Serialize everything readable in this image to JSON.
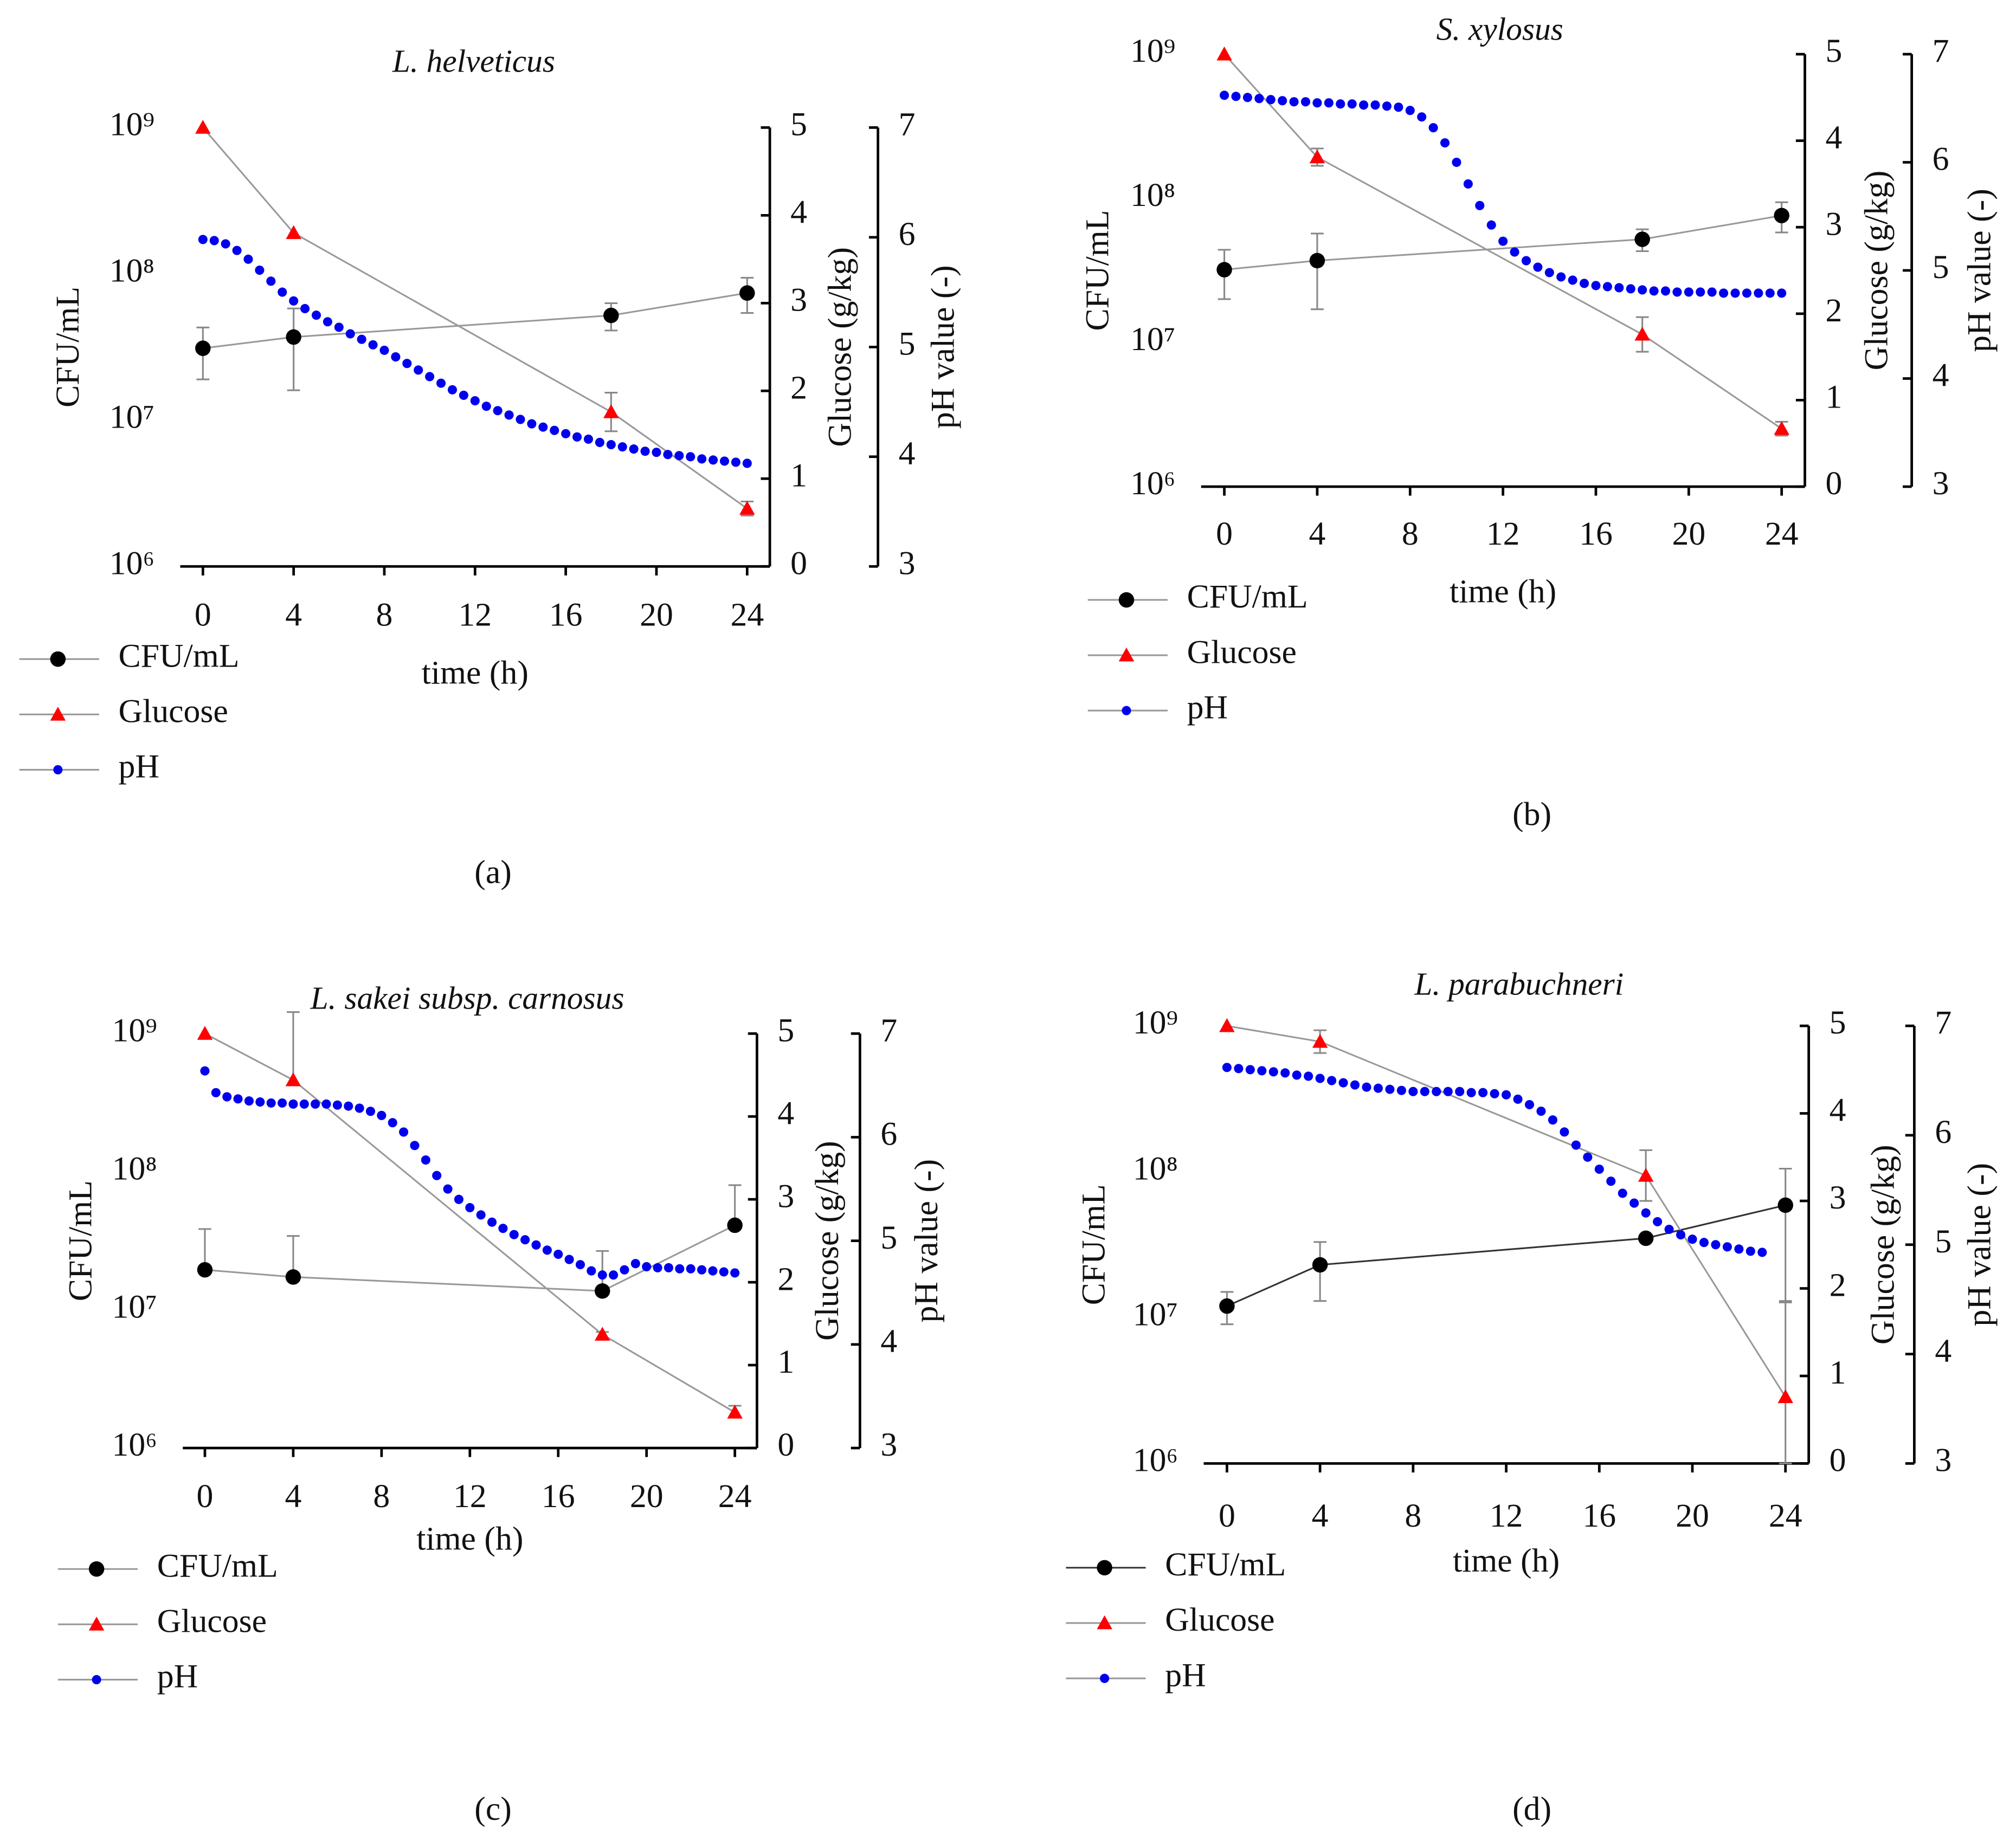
{
  "chart_data": [
    {
      "type": "line",
      "title": "L. helveticus",
      "panel_label": "(a)",
      "xlabel": "time (h)",
      "ylabel": "CFU/mL",
      "y2label": "Glucose (g/kg)",
      "y3label": "pH value (-)",
      "xlim": [
        -1,
        25
      ],
      "xticks": [
        0,
        4,
        8,
        12,
        16,
        20,
        24
      ],
      "ylim": [
        1000000,
        1000000000
      ],
      "ylog": true,
      "yticks": [
        {
          "value": 1000000,
          "label": "10⁶"
        },
        {
          "value": 10000000,
          "label": "10⁷"
        },
        {
          "value": 100000000,
          "label": "10⁸"
        },
        {
          "value": 1000000000,
          "label": "10⁹"
        }
      ],
      "y2lim": [
        0,
        5
      ],
      "y2ticks": [
        0,
        1,
        2,
        3,
        4,
        5
      ],
      "y3lim": [
        3,
        7
      ],
      "y3ticks": [
        3,
        4,
        5,
        6,
        7
      ],
      "error_bars": "both",
      "series": [
        {
          "name": "CFU/mL",
          "color": "#000000",
          "line_color": "#999999",
          "marker": "circle",
          "axis": "y",
          "line": true,
          "x": [
            0,
            4,
            18,
            24
          ],
          "values": [
            31000000,
            37000000,
            52000000,
            74000000
          ],
          "errors": [
            12000000,
            21000000,
            11000000,
            20000000
          ]
        },
        {
          "name": "Glucose",
          "color": "#ff0000",
          "line_color": "#999999",
          "marker": "triangle",
          "axis": "y2",
          "line": true,
          "x": [
            0,
            4,
            18,
            24
          ],
          "values": [
            5.0,
            3.8,
            1.76,
            0.66
          ],
          "errors": [
            0,
            0,
            0.22,
            0.08
          ]
        },
        {
          "name": "pH",
          "color": "#0000ee",
          "line_color": "#999999",
          "marker": "dot",
          "axis": "y3",
          "line": false,
          "x": [
            0,
            0.5,
            1,
            1.5,
            2,
            2.5,
            3,
            3.5,
            4,
            4.5,
            5,
            5.5,
            6,
            6.5,
            7,
            7.5,
            8,
            8.5,
            9,
            9.5,
            10,
            10.5,
            11,
            11.5,
            12,
            12.5,
            13,
            13.5,
            14,
            14.5,
            15,
            15.5,
            16,
            16.5,
            17,
            17.5,
            18,
            18.5,
            19,
            19.5,
            20,
            20.5,
            21,
            21.5,
            22,
            22.5,
            23,
            23.5,
            24
          ],
          "values": [
            5.98,
            5.97,
            5.94,
            5.88,
            5.8,
            5.7,
            5.6,
            5.5,
            5.42,
            5.35,
            5.29,
            5.23,
            5.18,
            5.12,
            5.07,
            5.02,
            4.97,
            4.91,
            4.85,
            4.79,
            4.73,
            4.67,
            4.61,
            4.56,
            4.51,
            4.46,
            4.42,
            4.38,
            4.34,
            4.3,
            4.27,
            4.24,
            4.21,
            4.18,
            4.16,
            4.13,
            4.11,
            4.09,
            4.07,
            4.05,
            4.04,
            4.02,
            4.01,
            4.0,
            3.98,
            3.97,
            3.96,
            3.95,
            3.94
          ]
        }
      ]
    },
    {
      "type": "line",
      "title": "S. xylosus",
      "panel_label": "(b)",
      "xlabel": "time (h)",
      "ylabel": "CFU/mL",
      "y2label": "Glucose (g/kg)",
      "y3label": "pH value (-)",
      "xlim": [
        -1,
        25
      ],
      "xticks": [
        0,
        4,
        8,
        12,
        16,
        20,
        24
      ],
      "ylim": [
        1000000,
        1000000000
      ],
      "ylog": true,
      "yticks": [
        {
          "value": 1000000,
          "label": "10⁶"
        },
        {
          "value": 10000000,
          "label": "10⁷"
        },
        {
          "value": 100000000,
          "label": "10⁸"
        },
        {
          "value": 1000000000,
          "label": "10⁹"
        }
      ],
      "y2lim": [
        0,
        5
      ],
      "y2ticks": [
        0,
        1,
        2,
        3,
        4,
        5
      ],
      "y3lim": [
        3,
        7
      ],
      "y3ticks": [
        3,
        4,
        5,
        6,
        7
      ],
      "error_bars": "both",
      "series": [
        {
          "name": "CFU/mL",
          "color": "#000000",
          "line_color": "#999999",
          "marker": "circle",
          "axis": "y",
          "line": true,
          "x": [
            0,
            4,
            18,
            24
          ],
          "values": [
            32000000,
            37000000,
            52000000,
            76000000
          ],
          "errors": [
            12000000,
            20000000,
            9000000,
            18000000
          ]
        },
        {
          "name": "Glucose",
          "color": "#ff0000",
          "line_color": "#999999",
          "marker": "triangle",
          "axis": "y2",
          "line": true,
          "x": [
            0,
            4,
            18,
            24
          ],
          "values": [
            5.0,
            3.81,
            1.76,
            0.67
          ],
          "errors": [
            0,
            0.1,
            0.2,
            0.08
          ]
        },
        {
          "name": "pH",
          "color": "#0000ee",
          "line_color": "#999999",
          "marker": "dot",
          "axis": "y3",
          "line": false,
          "x": [
            0,
            0.5,
            1,
            1.5,
            2,
            2.5,
            3,
            3.5,
            4,
            4.5,
            5,
            5.5,
            6,
            6.5,
            7,
            7.5,
            8,
            8.5,
            9,
            9.5,
            10,
            10.5,
            11,
            11.5,
            12,
            12.5,
            13,
            13.5,
            14,
            14.5,
            15,
            15.5,
            16,
            16.5,
            17,
            17.5,
            18,
            18.5,
            19,
            19.5,
            20,
            20.5,
            21,
            21.5,
            22,
            22.5,
            23,
            23.5,
            24
          ],
          "values": [
            6.62,
            6.61,
            6.6,
            6.59,
            6.58,
            6.57,
            6.56,
            6.56,
            6.55,
            6.55,
            6.54,
            6.54,
            6.53,
            6.53,
            6.52,
            6.51,
            6.48,
            6.42,
            6.32,
            6.18,
            6.0,
            5.8,
            5.6,
            5.42,
            5.27,
            5.17,
            5.09,
            5.03,
            4.98,
            4.94,
            4.91,
            4.88,
            4.86,
            4.85,
            4.84,
            4.83,
            4.82,
            4.81,
            4.81,
            4.8,
            4.8,
            4.8,
            4.8,
            4.79,
            4.79,
            4.79,
            4.79,
            4.79,
            4.79
          ]
        }
      ]
    },
    {
      "type": "line",
      "title": "L. sakei subsp. carnosus",
      "panel_label": "(c)",
      "xlabel": "time (h)",
      "ylabel": "CFU/mL",
      "y2label": "Glucose (g/kg)",
      "y3label": "pH value (-)",
      "xlim": [
        -1,
        25
      ],
      "xticks": [
        0,
        4,
        8,
        12,
        16,
        20,
        24
      ],
      "ylim": [
        1000000,
        1000000000
      ],
      "ylog": true,
      "yticks": [
        {
          "value": 1000000,
          "label": "10⁶"
        },
        {
          "value": 10000000,
          "label": "10⁷"
        },
        {
          "value": 100000000,
          "label": "10⁸"
        },
        {
          "value": 1000000000,
          "label": "10⁹"
        }
      ],
      "y2lim": [
        0,
        5
      ],
      "y2ticks": [
        0,
        1,
        2,
        3,
        4,
        5
      ],
      "y3lim": [
        3,
        7
      ],
      "y3ticks": [
        3,
        4,
        5,
        6,
        7
      ],
      "error_bars": "up",
      "series": [
        {
          "name": "CFU/mL",
          "color": "#000000",
          "line_color": "#999999",
          "marker": "circle",
          "axis": "y",
          "line": true,
          "x": [
            0,
            4,
            18,
            24
          ],
          "values": [
            19500000,
            17300000,
            13700000,
            41000000
          ],
          "errors": [
            19000000,
            17000000,
            13000000,
            39000000
          ]
        },
        {
          "name": "Glucose",
          "color": "#ff0000",
          "line_color": "#999999",
          "marker": "triangle",
          "axis": "y2",
          "line": true,
          "x": [
            0,
            4,
            18,
            24
          ],
          "values": [
            5.0,
            4.44,
            1.37,
            0.43
          ],
          "errors": [
            0,
            0.82,
            0.03,
            0.08
          ]
        },
        {
          "name": "pH",
          "color": "#0000ee",
          "line_color": "#999999",
          "marker": "dot",
          "axis": "y3",
          "line": false,
          "x": [
            0,
            0.5,
            1,
            1.5,
            2,
            2.5,
            3,
            3.5,
            4,
            4.5,
            5,
            5.5,
            6,
            6.5,
            7,
            7.5,
            8,
            8.5,
            9,
            9.5,
            10,
            10.5,
            11,
            11.5,
            12,
            12.5,
            13,
            13.5,
            14,
            14.5,
            15,
            15.5,
            16,
            16.5,
            17,
            17.5,
            18,
            18.5,
            19,
            19.5,
            20,
            20.5,
            21,
            21.5,
            22,
            22.5,
            23,
            23.5,
            24
          ],
          "values": [
            6.64,
            6.43,
            6.39,
            6.37,
            6.35,
            6.34,
            6.33,
            6.33,
            6.32,
            6.32,
            6.32,
            6.32,
            6.31,
            6.3,
            6.28,
            6.25,
            6.21,
            6.14,
            6.05,
            5.92,
            5.78,
            5.63,
            5.5,
            5.4,
            5.32,
            5.25,
            5.18,
            5.12,
            5.06,
            5.01,
            4.96,
            4.91,
            4.87,
            4.82,
            4.77,
            4.71,
            4.67,
            4.67,
            4.72,
            4.78,
            4.75,
            4.74,
            4.74,
            4.73,
            4.73,
            4.72,
            4.71,
            4.7,
            4.69
          ]
        }
      ]
    },
    {
      "type": "line",
      "title": "L. parabuchneri",
      "panel_label": "(d)",
      "xlabel": "time (h)",
      "ylabel": "CFU/mL",
      "y2label": "Glucose (g/kg)",
      "y3label": "pH value (-)",
      "xlim": [
        -1,
        25
      ],
      "xticks": [
        0,
        4,
        8,
        12,
        16,
        20,
        24
      ],
      "ylim": [
        1000000,
        1000000000
      ],
      "ylog": true,
      "yticks": [
        {
          "value": 1000000,
          "label": "10⁶"
        },
        {
          "value": 10000000,
          "label": "10⁷"
        },
        {
          "value": 100000000,
          "label": "10⁸"
        },
        {
          "value": 1000000000,
          "label": "10⁹"
        }
      ],
      "y2lim": [
        0,
        5
      ],
      "y2ticks": [
        0,
        1,
        2,
        3,
        4,
        5
      ],
      "y3lim": [
        3,
        7
      ],
      "y3ticks": [
        3,
        4,
        5,
        6,
        7
      ],
      "error_bars": "both",
      "series": [
        {
          "name": "CFU/mL",
          "color": "#000000",
          "line_color": "#333333",
          "marker": "circle",
          "axis": "y",
          "line": true,
          "x": [
            0,
            4,
            18,
            24
          ],
          "values": [
            12000000,
            23000000,
            35000000,
            59000000
          ],
          "errors": [
            3000000,
            10000000,
            0,
            46000000
          ]
        },
        {
          "name": "Glucose",
          "color": "#ff0000",
          "line_color": "#999999",
          "marker": "triangle",
          "axis": "y2",
          "line": true,
          "x": [
            0,
            4,
            18,
            24
          ],
          "values": [
            5.0,
            4.82,
            3.29,
            0.76
          ],
          "errors": [
            0,
            0.13,
            0.29,
            1.08
          ]
        },
        {
          "name": "pH",
          "color": "#0000ee",
          "line_color": "#999999",
          "marker": "dot",
          "axis": "y3",
          "line": false,
          "x": [
            0,
            0.5,
            1,
            1.5,
            2,
            2.5,
            3,
            3.5,
            4,
            4.5,
            5,
            5.5,
            6,
            6.5,
            7,
            7.5,
            8,
            8.5,
            9,
            9.5,
            10,
            10.5,
            11,
            11.5,
            12,
            12.5,
            13,
            13.5,
            14,
            14.5,
            15,
            15.5,
            16,
            16.5,
            17,
            17.5,
            18,
            18.5,
            19,
            19.5,
            20,
            20.5,
            21,
            21.5,
            22,
            22.5,
            23
          ],
          "values": [
            6.62,
            6.61,
            6.6,
            6.59,
            6.58,
            6.57,
            6.55,
            6.54,
            6.52,
            6.5,
            6.48,
            6.46,
            6.44,
            6.43,
            6.42,
            6.41,
            6.4,
            6.4,
            6.4,
            6.4,
            6.4,
            6.39,
            6.39,
            6.38,
            6.37,
            6.33,
            6.28,
            6.22,
            6.14,
            6.03,
            5.91,
            5.8,
            5.69,
            5.58,
            5.47,
            5.38,
            5.29,
            5.21,
            5.14,
            5.09,
            5.05,
            5.02,
            5.0,
            4.98,
            4.96,
            4.94,
            4.93
          ]
        }
      ]
    }
  ]
}
